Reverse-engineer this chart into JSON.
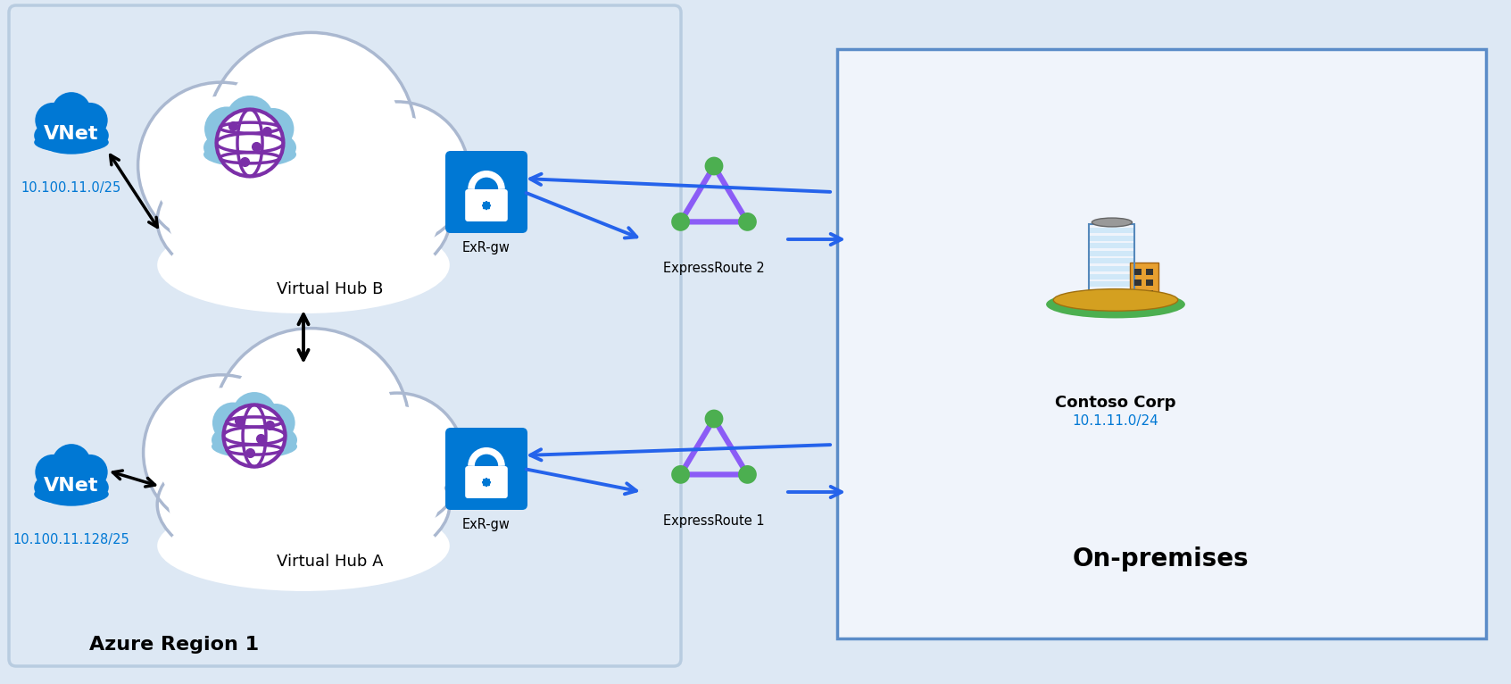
{
  "bg_color": "#dde8f4",
  "azure_region_label": "Azure Region 1",
  "on_premises_label": "On-premises",
  "hub_b_label": "Virtual Hub B",
  "hub_a_label": "Virtual Hub A",
  "vnet_b_label": "VNet",
  "vnet_b_sublabel": "10.100.11.0/25",
  "vnet_a_label": "VNet",
  "vnet_a_sublabel": "10.100.11.128/25",
  "exr_gw_label": "ExR-gw",
  "er2_label": "ExpressRoute 2",
  "er1_label": "ExpressRoute 1",
  "contoso_label": "Contoso Corp",
  "contoso_sublabel": "10.1.11.0/24",
  "vnet_color": "#0078d4",
  "er_triangle_color": "#8b5cf6",
  "er_node_color": "#4caf50",
  "arrow_blue": "#2563eb",
  "arrow_black": "#000000",
  "onprem_box_stroke": "#5b8cc8",
  "cloud_edge_color": "#aab8d0",
  "globe_cloud_color": "#89c4e0",
  "globe_color": "#7b2fa8",
  "lock_color": "#0078d4"
}
